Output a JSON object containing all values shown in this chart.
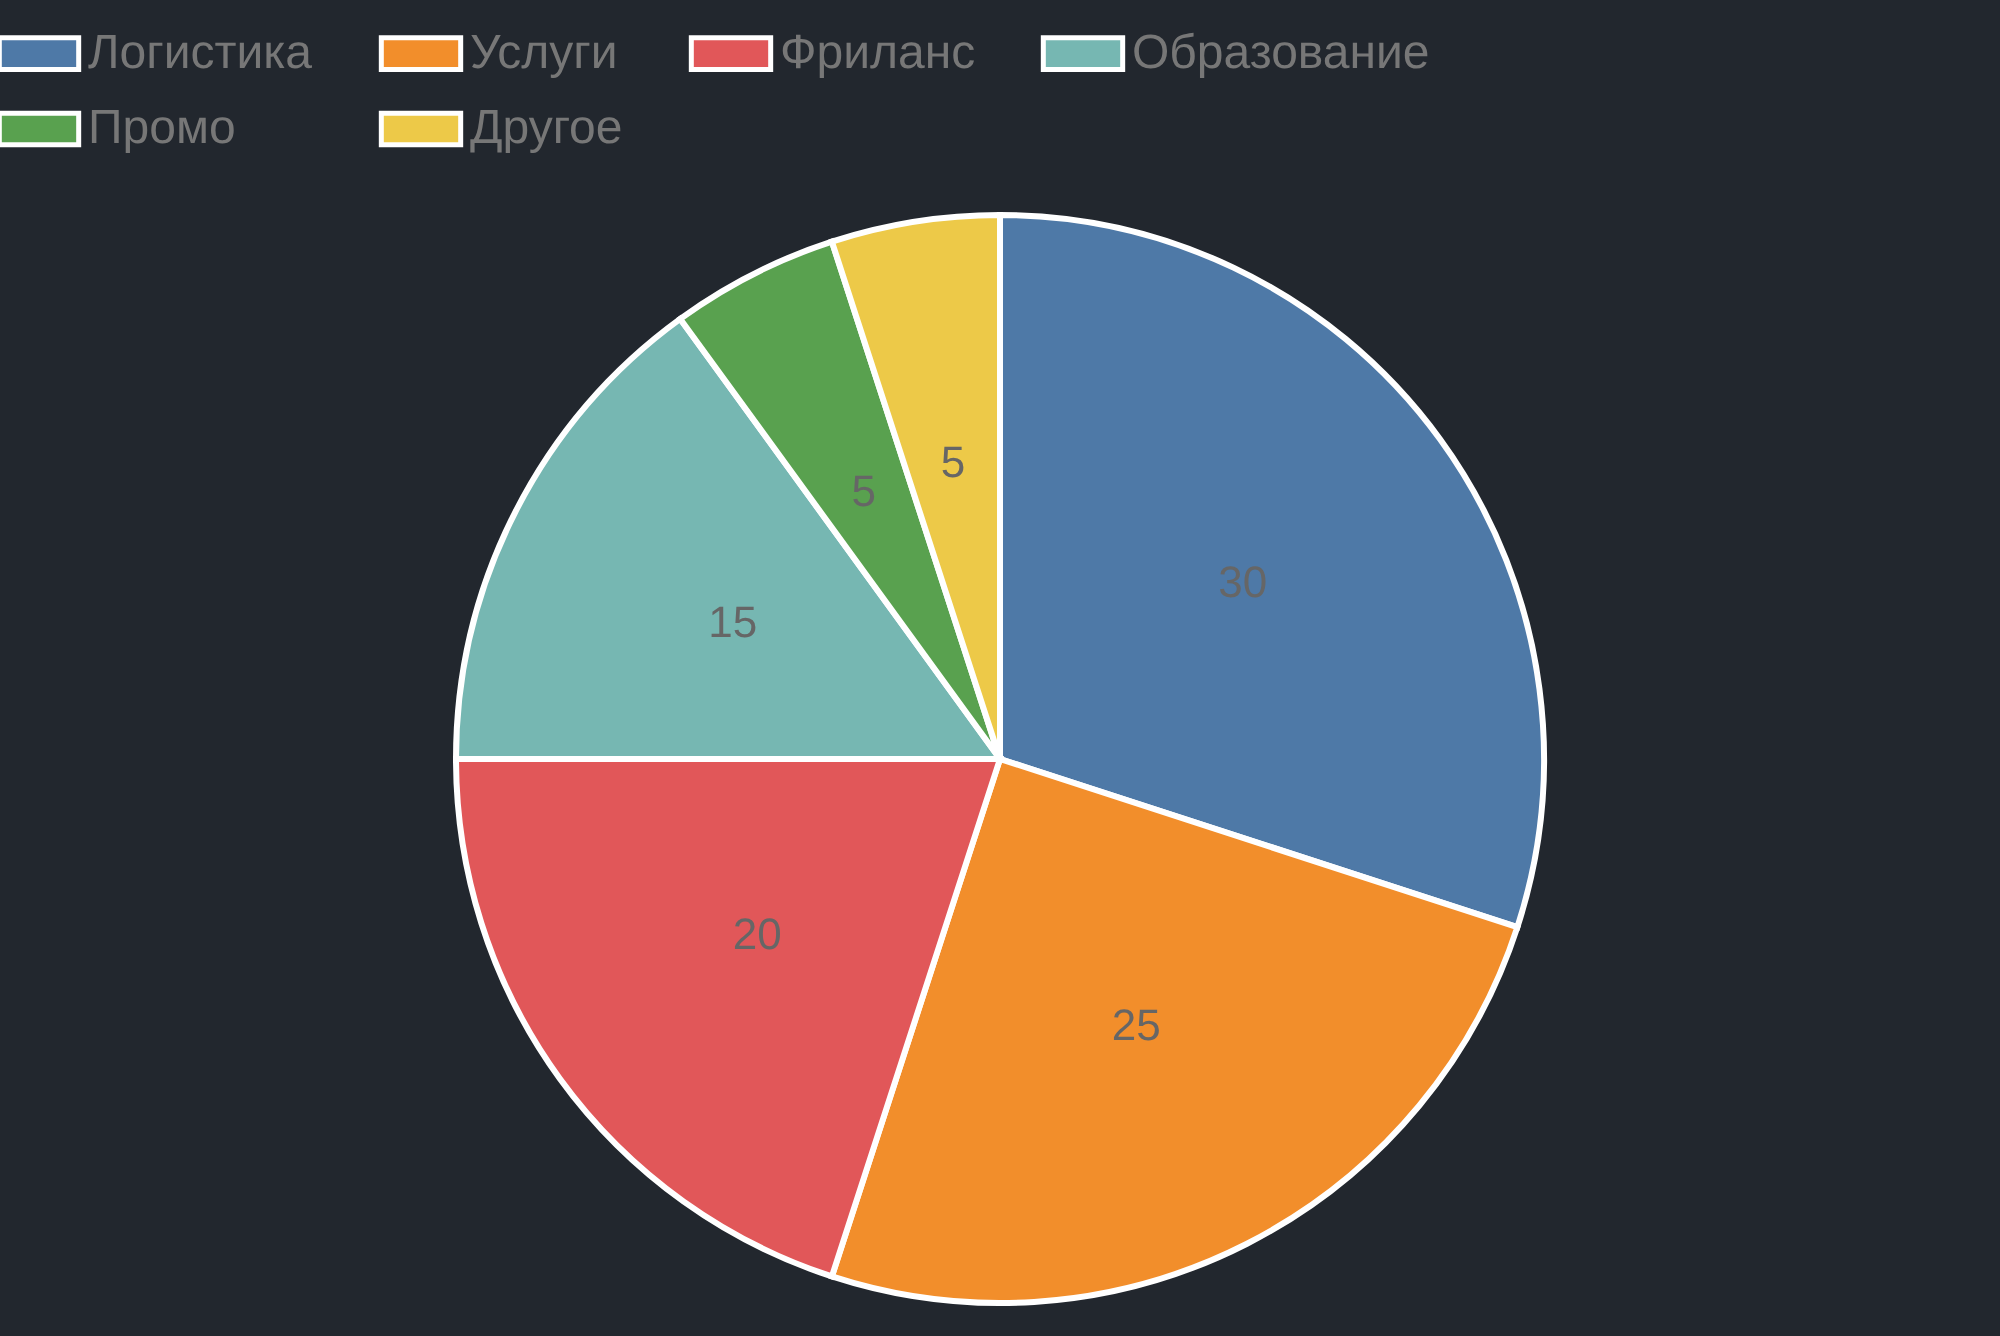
{
  "chart_data": {
    "type": "pie",
    "categories": [
      "Логистика",
      "Услуги",
      "Фриланс",
      "Образование",
      "Промо",
      "Другое"
    ],
    "values": [
      30,
      25,
      20,
      15,
      5,
      5
    ],
    "colors": [
      "#4e79a7",
      "#f28e2b",
      "#e15759",
      "#76b7b2",
      "#59a14f",
      "#edc948"
    ],
    "legend": "top",
    "data_labels": true
  }
}
